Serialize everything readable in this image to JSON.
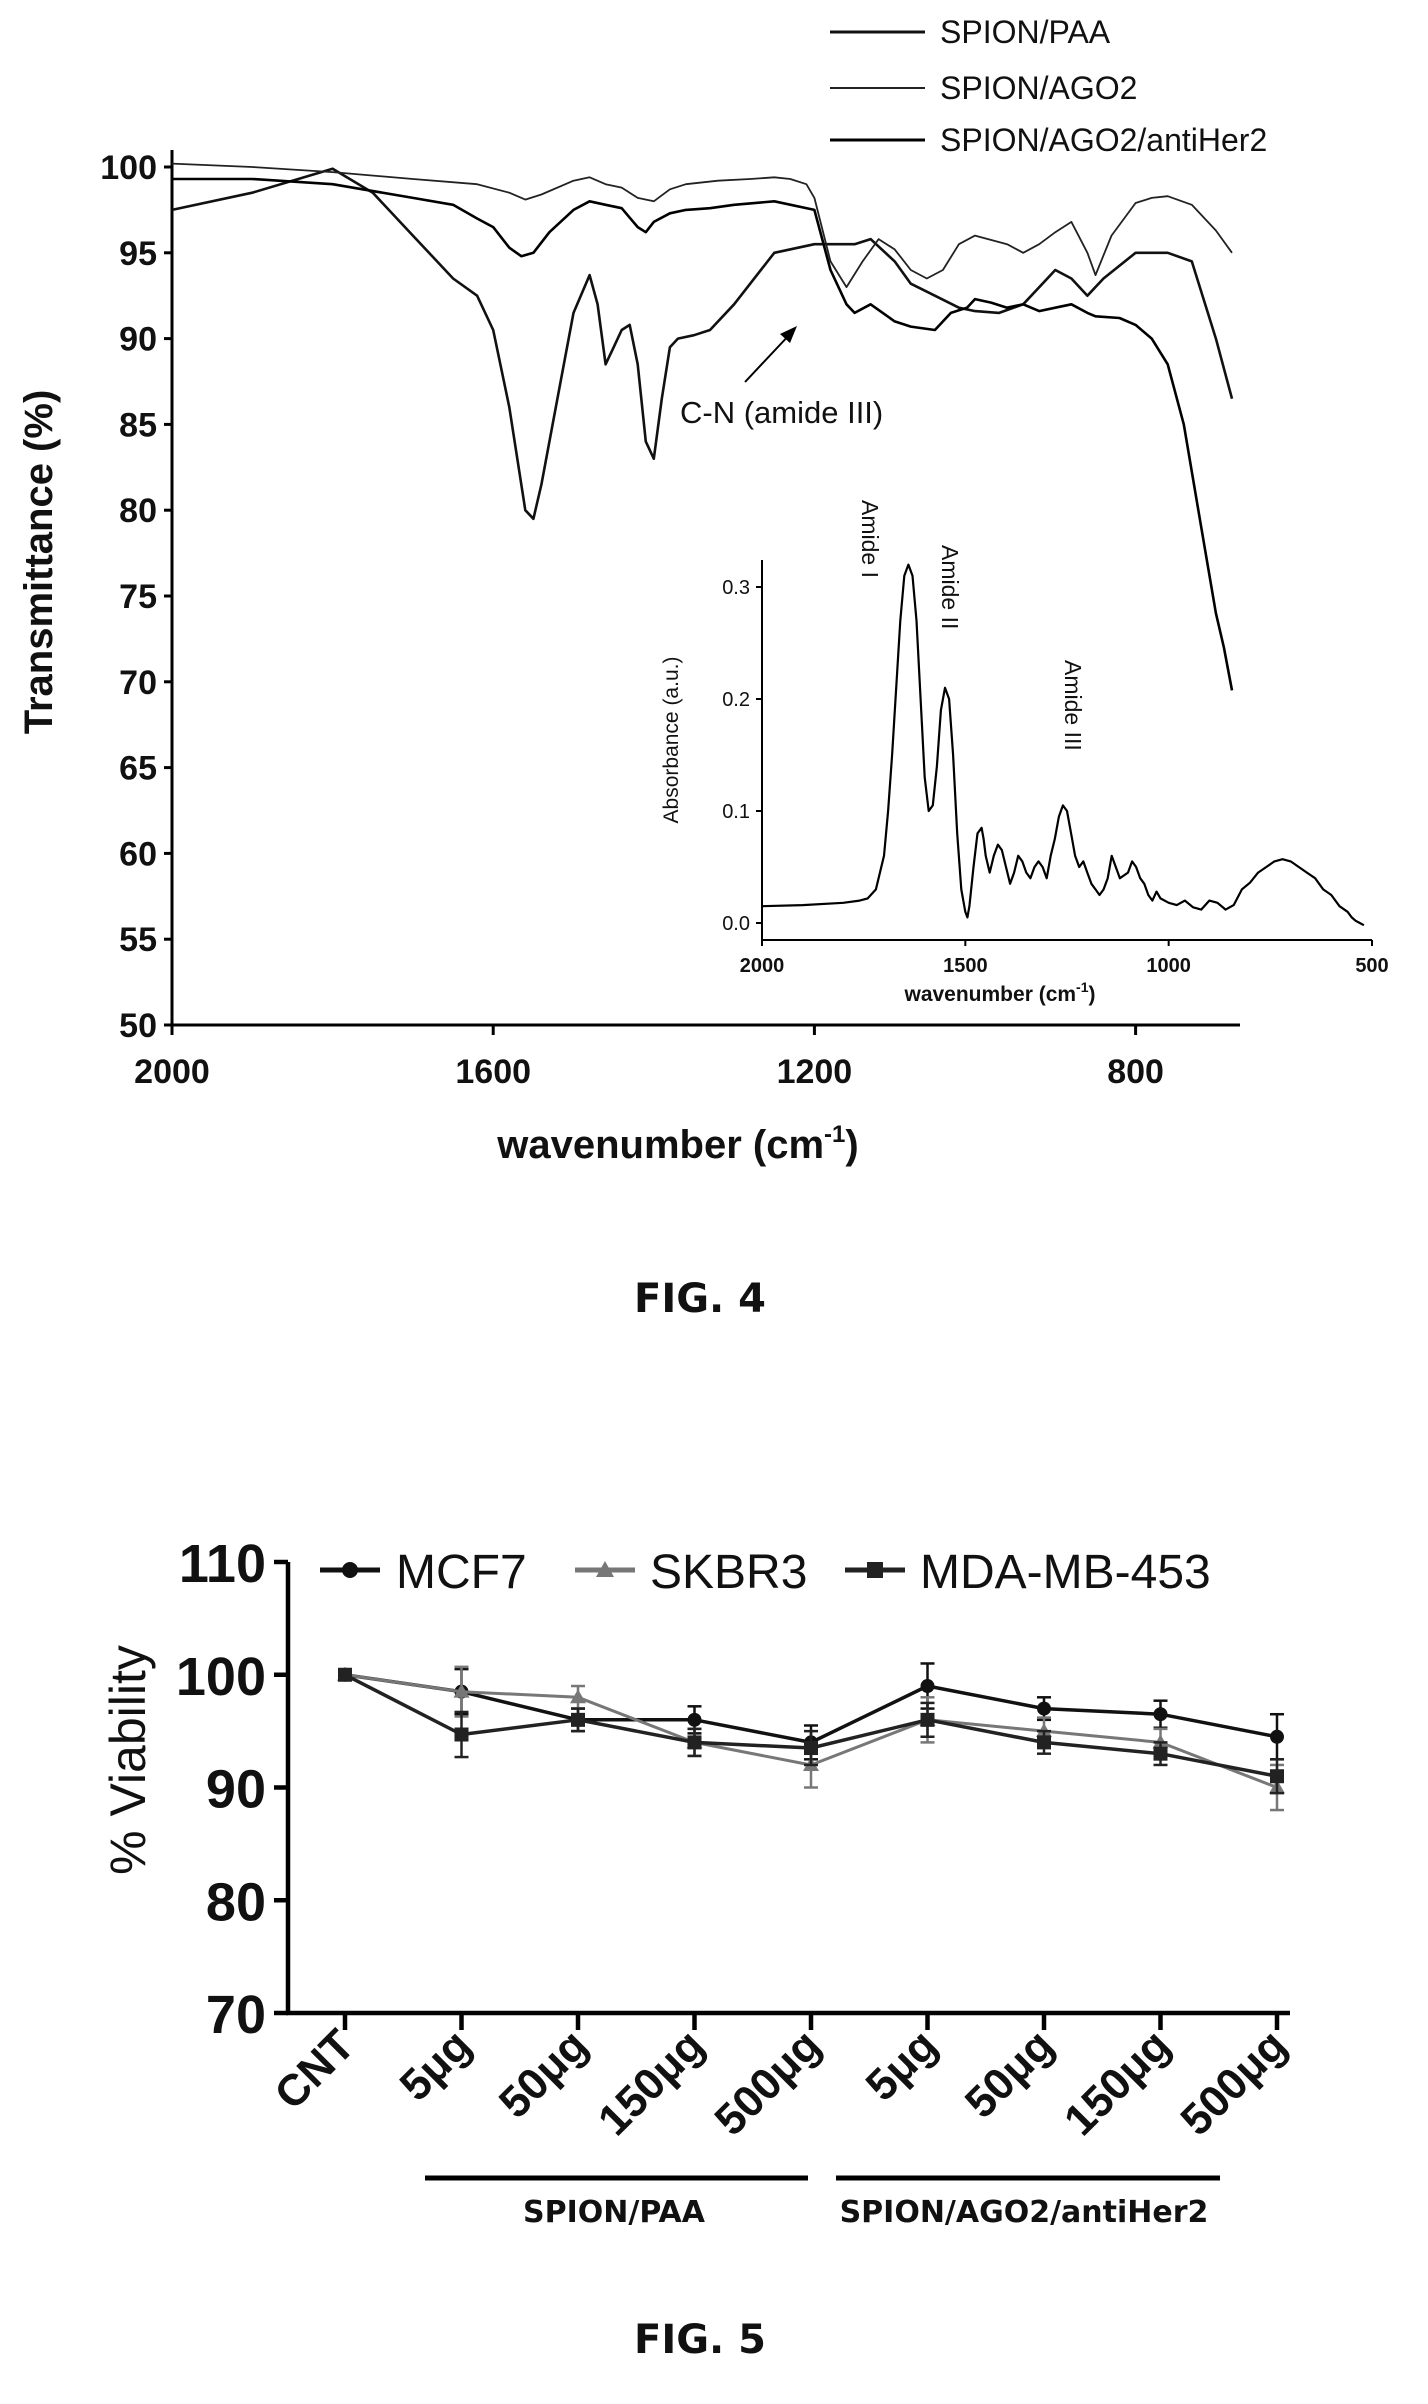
{
  "fig4": {
    "caption": "FIG. 4",
    "chart_data": {
      "type": "line",
      "xlabel": "wavenumber (cm",
      "xlabel_sup": "-1",
      "xlabel_close": ")",
      "ylabel": "Transmittance (%)",
      "xlim": [
        2000,
        670
      ],
      "ylim": [
        50,
        100
      ],
      "xticks": [
        2000,
        1600,
        1200,
        800
      ],
      "yticks": [
        50,
        55,
        60,
        65,
        70,
        75,
        80,
        85,
        90,
        95,
        100
      ],
      "legend_position": "top-right",
      "annotation": {
        "text": "C-N (amide III)",
        "x": 1165,
        "y": 93
      },
      "series": [
        {
          "name": "SPION/PAA",
          "color": "#111111",
          "width": 2.6,
          "x": [
            2000,
            1900,
            1800,
            1750,
            1700,
            1650,
            1620,
            1600,
            1580,
            1560,
            1550,
            1540,
            1520,
            1500,
            1480,
            1470,
            1460,
            1450,
            1440,
            1430,
            1420,
            1410,
            1400,
            1390,
            1380,
            1370,
            1350,
            1330,
            1300,
            1250,
            1200,
            1150,
            1130,
            1100,
            1080,
            1050,
            1020,
            1000,
            970,
            940,
            900,
            880,
            860,
            840,
            800,
            760,
            730,
            700,
            680
          ],
          "y": [
            97.5,
            98.5,
            99.9,
            98.5,
            96,
            93.5,
            92.5,
            90.5,
            86,
            80,
            79.5,
            81.5,
            86.5,
            91.5,
            93.7,
            92,
            88.5,
            89.5,
            90.5,
            90.8,
            88.5,
            84,
            83,
            86.5,
            89.5,
            90,
            90.2,
            90.5,
            92,
            95,
            95.5,
            95.5,
            95.8,
            94.5,
            93.2,
            92.5,
            91.8,
            91.6,
            91.5,
            92,
            94,
            93.5,
            92.5,
            93.5,
            95,
            95,
            94.5,
            90,
            86.5
          ]
        },
        {
          "name": "SPION/AGO2",
          "color": "#222222",
          "width": 1.8,
          "x": [
            2000,
            1900,
            1800,
            1700,
            1620,
            1580,
            1560,
            1540,
            1500,
            1480,
            1460,
            1440,
            1420,
            1400,
            1380,
            1360,
            1320,
            1280,
            1250,
            1230,
            1210,
            1200,
            1180,
            1160,
            1140,
            1120,
            1100,
            1080,
            1060,
            1040,
            1020,
            1000,
            960,
            940,
            920,
            900,
            880,
            860,
            850,
            830,
            800,
            780,
            760,
            730,
            700,
            680
          ],
          "y": [
            100.2,
            100,
            99.7,
            99.3,
            99,
            98.5,
            98.1,
            98.4,
            99.2,
            99.4,
            99,
            98.8,
            98.2,
            98,
            98.7,
            99,
            99.2,
            99.3,
            99.4,
            99.3,
            99,
            98.2,
            94.5,
            93,
            94.5,
            95.8,
            95.2,
            94,
            93.5,
            94,
            95.5,
            96,
            95.5,
            95,
            95.5,
            96.2,
            96.8,
            95,
            93.7,
            96,
            97.9,
            98.2,
            98.3,
            97.8,
            96.3,
            95
          ]
        },
        {
          "name": "SPION/AGO2/antiHer2",
          "color": "#000000",
          "width": 2.6,
          "x": [
            2000,
            1900,
            1800,
            1700,
            1650,
            1620,
            1600,
            1580,
            1565,
            1550,
            1530,
            1500,
            1480,
            1460,
            1440,
            1420,
            1410,
            1400,
            1380,
            1360,
            1330,
            1300,
            1250,
            1200,
            1180,
            1160,
            1150,
            1130,
            1100,
            1080,
            1050,
            1030,
            1010,
            1000,
            980,
            960,
            940,
            920,
            900,
            880,
            860,
            850,
            820,
            800,
            780,
            760,
            740,
            720,
            700,
            690,
            680
          ],
          "y": [
            99.3,
            99.3,
            99,
            98.2,
            97.8,
            97,
            96.5,
            95.3,
            94.8,
            95,
            96.2,
            97.5,
            98,
            97.8,
            97.6,
            96.5,
            96.2,
            96.8,
            97.3,
            97.5,
            97.6,
            97.8,
            98,
            97.5,
            94,
            92,
            91.5,
            92,
            91,
            90.7,
            90.5,
            91.5,
            91.8,
            92.3,
            92.1,
            91.8,
            92,
            91.6,
            91.8,
            92,
            91.5,
            91.3,
            91.2,
            90.8,
            90,
            88.5,
            85,
            79.5,
            74,
            72,
            69.5
          ]
        }
      ]
    },
    "inset": {
      "chart_data": {
        "type": "line",
        "xlabel": "wavenumber (cm",
        "xlabel_sup": "-1",
        "xlabel_close": ")",
        "ylabel": "Absorbance (a.u.)",
        "xlim": [
          2000,
          500
        ],
        "ylim": [
          -0.01,
          0.33
        ],
        "xticks": [
          2000,
          1500,
          1000,
          500
        ],
        "yticks": [
          0.0,
          0.1,
          0.2,
          0.3
        ],
        "yticklabels": [
          "0.0",
          "0.1",
          "0.2",
          "0.3"
        ],
        "annotations": [
          {
            "text": "Amide I",
            "x": 1655,
            "y": 0.3
          },
          {
            "text": "Amide II",
            "x": 1545,
            "y": 0.27
          },
          {
            "text": "Amide III",
            "x": 1240,
            "y": 0.16
          }
        ],
        "series": [
          {
            "name": "",
            "color": "#000000",
            "width": 2.2,
            "x": [
              2000,
              1900,
              1800,
              1760,
              1740,
              1720,
              1700,
              1690,
              1680,
              1670,
              1660,
              1650,
              1640,
              1630,
              1620,
              1610,
              1600,
              1590,
              1580,
              1570,
              1560,
              1550,
              1540,
              1530,
              1520,
              1510,
              1500,
              1495,
              1490,
              1480,
              1470,
              1460,
              1455,
              1450,
              1440,
              1430,
              1420,
              1410,
              1400,
              1390,
              1380,
              1370,
              1360,
              1350,
              1340,
              1330,
              1320,
              1310,
              1300,
              1290,
              1280,
              1270,
              1260,
              1250,
              1240,
              1230,
              1220,
              1210,
              1200,
              1190,
              1180,
              1170,
              1160,
              1150,
              1140,
              1130,
              1120,
              1100,
              1090,
              1080,
              1070,
              1060,
              1050,
              1040,
              1030,
              1020,
              1000,
              980,
              960,
              940,
              920,
              900,
              880,
              860,
              840,
              820,
              800,
              780,
              760,
              740,
              720,
              700,
              680,
              660,
              640,
              620,
              600,
              580,
              560,
              550,
              540,
              530,
              520
            ],
            "y": [
              0.015,
              0.016,
              0.018,
              0.02,
              0.022,
              0.03,
              0.06,
              0.1,
              0.15,
              0.21,
              0.27,
              0.31,
              0.32,
              0.31,
              0.27,
              0.2,
              0.13,
              0.1,
              0.105,
              0.14,
              0.19,
              0.21,
              0.2,
              0.15,
              0.08,
              0.03,
              0.01,
              0.005,
              0.015,
              0.05,
              0.08,
              0.085,
              0.075,
              0.06,
              0.045,
              0.06,
              0.07,
              0.065,
              0.05,
              0.035,
              0.045,
              0.06,
              0.055,
              0.045,
              0.04,
              0.05,
              0.055,
              0.05,
              0.04,
              0.06,
              0.075,
              0.095,
              0.105,
              0.1,
              0.08,
              0.06,
              0.05,
              0.055,
              0.045,
              0.035,
              0.03,
              0.025,
              0.03,
              0.04,
              0.06,
              0.05,
              0.04,
              0.045,
              0.055,
              0.05,
              0.04,
              0.035,
              0.025,
              0.02,
              0.028,
              0.022,
              0.018,
              0.016,
              0.02,
              0.014,
              0.012,
              0.02,
              0.018,
              0.012,
              0.016,
              0.03,
              0.036,
              0.045,
              0.05,
              0.055,
              0.057,
              0.055,
              0.05,
              0.045,
              0.04,
              0.03,
              0.025,
              0.015,
              0.01,
              0.005,
              0.002,
              0.0,
              -0.002
            ]
          }
        ]
      }
    }
  },
  "fig5": {
    "caption": "FIG. 5",
    "chart_data": {
      "type": "line",
      "ylabel": "% Viability",
      "ylim": [
        70,
        110
      ],
      "yticks": [
        70,
        80,
        90,
        100,
        110
      ],
      "categories": [
        "CNT",
        "5μg",
        "50μg",
        "150μg",
        "500μg",
        "5μg",
        "50μg",
        "150μg",
        "500μg"
      ],
      "groups": [
        {
          "label": "SPION/PAA",
          "from": 1,
          "to": 4
        },
        {
          "label": "SPION/AGO2/antiHer2",
          "from": 5,
          "to": 8
        }
      ],
      "legend_position": "top",
      "series": [
        {
          "name": "MCF7",
          "marker": "circle",
          "color": "#111111",
          "width": 3.5,
          "values": [
            100,
            98.5,
            96,
            96,
            94,
            99,
            97,
            96.5,
            94.5
          ],
          "errors": [
            0,
            2,
            1,
            1.2,
            1.5,
            2,
            1,
            1.2,
            2
          ]
        },
        {
          "name": "SKBR3",
          "marker": "triangle",
          "color": "#777777",
          "width": 3,
          "values": [
            100,
            98.5,
            98,
            94,
            92,
            96,
            95,
            94,
            90
          ],
          "errors": [
            0,
            2.2,
            1,
            1.2,
            2,
            2,
            1.2,
            1.2,
            2
          ]
        },
        {
          "name": "MDA-MB-453",
          "marker": "square",
          "color": "#222222",
          "width": 3.5,
          "values": [
            100,
            94.7,
            96,
            94,
            93.5,
            96,
            94,
            93,
            91
          ],
          "errors": [
            0,
            2,
            1,
            1.2,
            1.5,
            1.5,
            1,
            1,
            1.5
          ]
        }
      ]
    }
  }
}
